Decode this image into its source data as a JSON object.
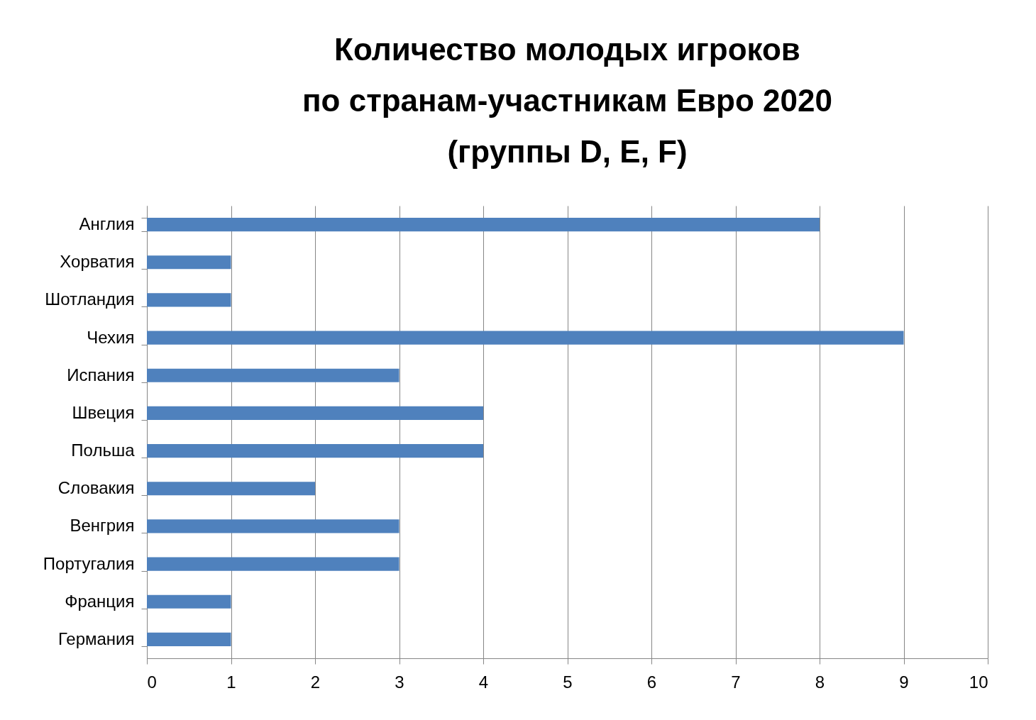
{
  "chart_data": {
    "type": "bar",
    "orientation": "horizontal",
    "title": [
      "Количество молодых игроков",
      "по странам-участникам Евро 2020",
      "(группы D, E, F)"
    ],
    "categories": [
      "Англия",
      "Хорватия",
      "Шотландия",
      "Чехия",
      "Испания",
      "Швеция",
      "Польша",
      "Словакия",
      "Венгрия",
      "Португалия",
      "Франция",
      "Германия"
    ],
    "values": [
      8,
      1,
      1,
      9,
      3,
      4,
      4,
      2,
      3,
      3,
      1,
      1
    ],
    "color": "#4f81bd",
    "xlim": [
      0,
      10
    ],
    "xticks": [
      0,
      1,
      2,
      3,
      4,
      5,
      6,
      7,
      8,
      9,
      10
    ],
    "grid": "x"
  }
}
